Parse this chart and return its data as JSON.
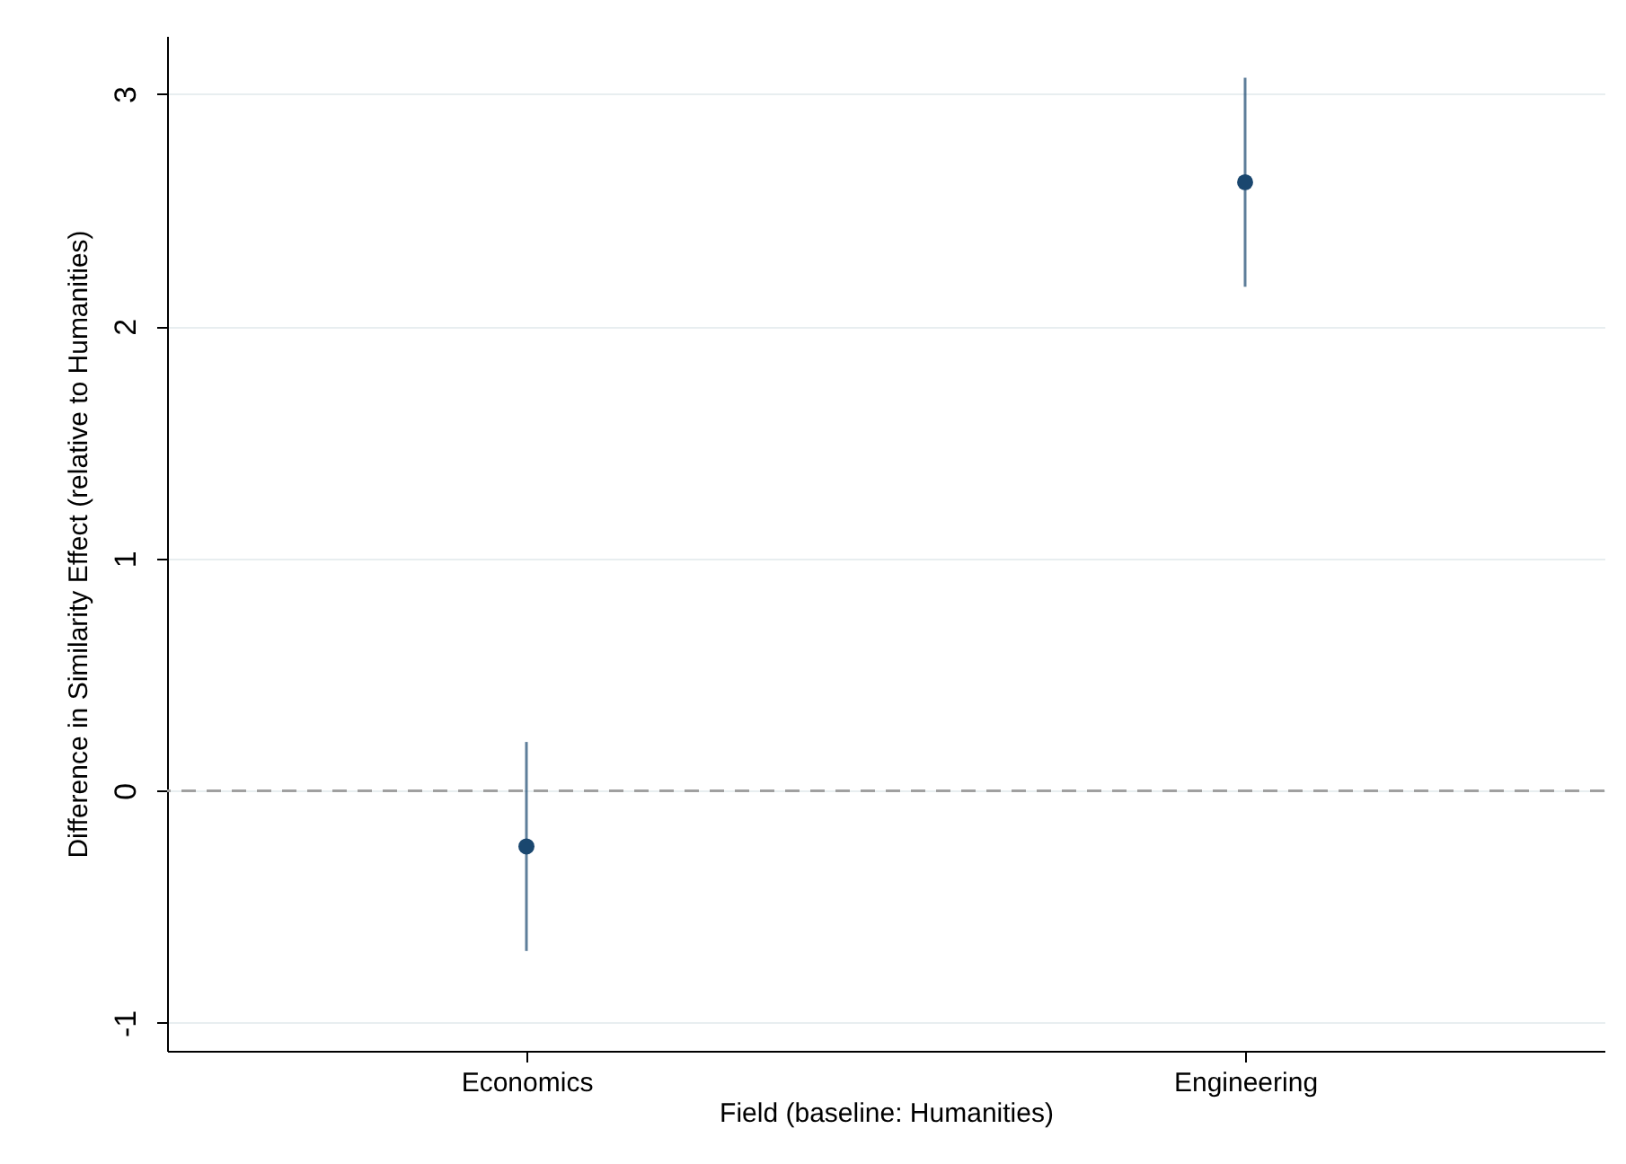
{
  "chart_data": {
    "type": "scatter",
    "xlabel": "Field (baseline: Humanities)",
    "ylabel": "Difference in Similarity Effect (relative to Humanities)",
    "categories": [
      "Economics",
      "Engineering"
    ],
    "series": [
      {
        "color": "#1a476f",
        "values": [
          -0.24,
          2.62
        ],
        "errors": [
          [
            -0.69,
            0.21
          ],
          [
            2.17,
            3.07
          ]
        ]
      }
    ],
    "ylim": [
      -1.12,
      3.25
    ],
    "yticks": [
      -1,
      0,
      1,
      2,
      3
    ],
    "grid": "y",
    "marker": "circle",
    "ref_lines": [
      {
        "axis": "y",
        "value": 0,
        "color": "#a0a0a0",
        "line_style": "dashed"
      }
    ]
  }
}
